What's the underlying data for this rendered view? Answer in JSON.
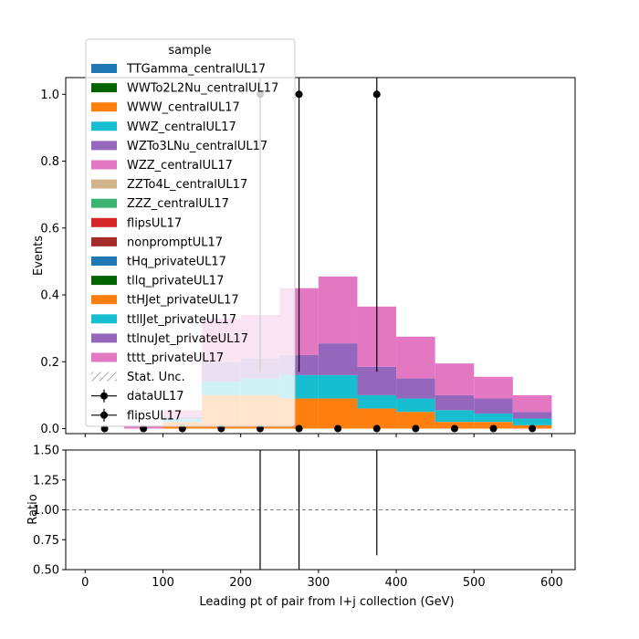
{
  "chart_data": {
    "type": "bar",
    "xlabel": "Leading pt of pair from l+j collection (GeV)",
    "x_ticks": [
      0,
      100,
      200,
      300,
      400,
      500,
      600
    ],
    "xlim": [
      -25,
      630
    ],
    "bin_edges": [
      0,
      50,
      100,
      150,
      200,
      250,
      300,
      350,
      400,
      450,
      500,
      550,
      600
    ],
    "main": {
      "ylabel": "Events",
      "ylim": [
        -0.015,
        1.05
      ],
      "y_ticks": [
        "0.0",
        "0.2",
        "0.4",
        "0.6",
        "0.8",
        "1.0"
      ],
      "y_tick_values": [
        0.0,
        0.2,
        0.4,
        0.6,
        0.8,
        1.0
      ]
    },
    "ratio": {
      "ylabel": "Ratio",
      "ylim": [
        0.5,
        1.5
      ],
      "y_ticks": [
        "0.50",
        "0.75",
        "1.00",
        "1.25",
        "1.50"
      ],
      "y_tick_values": [
        0.5,
        0.75,
        1.0,
        1.25,
        1.5
      ],
      "reference_line": 1.0,
      "error_bars": [
        {
          "x": 225,
          "low": 0.5,
          "high": 1.5
        },
        {
          "x": 275,
          "low": 0.5,
          "high": 1.5
        },
        {
          "x": 375,
          "low": 0.62,
          "high": 1.5
        }
      ]
    },
    "stack": [
      {
        "name": "ttHJet_privateUL17",
        "color": "#ff7f0e",
        "values": [
          0,
          0,
          0.02,
          0.1,
          0.1,
          0.09,
          0.09,
          0.06,
          0.05,
          0.02,
          0.02,
          0.01
        ]
      },
      {
        "name": "ttllJet_privateUL17",
        "color": "#17becf",
        "values": [
          0,
          0,
          0.01,
          0.04,
          0.05,
          0.07,
          0.07,
          0.04,
          0.04,
          0.035,
          0.025,
          0.02
        ]
      },
      {
        "name": "ttlnuJet_privateUL17",
        "color": "#9467bd",
        "values": [
          0,
          0,
          0.005,
          0.06,
          0.06,
          0.06,
          0.095,
          0.085,
          0.06,
          0.045,
          0.045,
          0.02
        ]
      },
      {
        "name": "tttt_privateUL17",
        "color": "#e377c2",
        "values": [
          0,
          0.01,
          0.02,
          0.13,
          0.13,
          0.2,
          0.2,
          0.18,
          0.125,
          0.095,
          0.065,
          0.05
        ]
      }
    ],
    "legend": {
      "title": "sample",
      "placement": "upper-left",
      "entries": [
        {
          "label": "TTGamma_centralUL17",
          "color": "#1f77b4",
          "kind": "patch"
        },
        {
          "label": "WWTo2L2Nu_centralUL17",
          "color": "#006400",
          "kind": "patch"
        },
        {
          "label": "WWW_centralUL17",
          "color": "#ff7f0e",
          "kind": "patch"
        },
        {
          "label": "WWZ_centralUL17",
          "color": "#17becf",
          "kind": "patch"
        },
        {
          "label": "WZTo3LNu_centralUL17",
          "color": "#9467bd",
          "kind": "patch"
        },
        {
          "label": "WZZ_centralUL17",
          "color": "#e377c2",
          "kind": "patch"
        },
        {
          "label": "ZZTo4L_centralUL17",
          "color": "#d2b48c",
          "kind": "patch"
        },
        {
          "label": "ZZZ_centralUL17",
          "color": "#3cb371",
          "kind": "patch"
        },
        {
          "label": "flipsUL17",
          "color": "#d62728",
          "kind": "patch"
        },
        {
          "label": "nonpromptUL17",
          "color": "#a52a2a",
          "kind": "patch"
        },
        {
          "label": "tHq_privateUL17",
          "color": "#1f77b4",
          "kind": "patch"
        },
        {
          "label": "tllq_privateUL17",
          "color": "#006400",
          "kind": "patch"
        },
        {
          "label": "ttHJet_privateUL17",
          "color": "#ff7f0e",
          "kind": "patch"
        },
        {
          "label": "ttllJet_privateUL17",
          "color": "#17becf",
          "kind": "patch"
        },
        {
          "label": "ttlnuJet_privateUL17",
          "color": "#9467bd",
          "kind": "patch"
        },
        {
          "label": "tttt_privateUL17",
          "color": "#e377c2",
          "kind": "patch"
        },
        {
          "label": "Stat. Unc.",
          "color": "#999999",
          "kind": "hatch"
        },
        {
          "label": "dataUL17",
          "color": "#000000",
          "kind": "errorbar"
        },
        {
          "label": "flipsUL17",
          "color": "#000000",
          "kind": "errorbar"
        }
      ]
    },
    "data_points": [
      {
        "x": 25,
        "y": 0,
        "err": 0
      },
      {
        "x": 75,
        "y": 0,
        "err": 0
      },
      {
        "x": 125,
        "y": 0,
        "err": 0
      },
      {
        "x": 175,
        "y": 0,
        "err": 0
      },
      {
        "x": 225,
        "y": 0,
        "err": 0
      },
      {
        "x": 225,
        "y": 1.0,
        "err_low": 0.83,
        "err_high": 0.05
      },
      {
        "x": 275,
        "y": 0,
        "err": 0
      },
      {
        "x": 275,
        "y": 1.0,
        "err_low": 0.83,
        "err_high": 0.05
      },
      {
        "x": 325,
        "y": 0,
        "err": 0
      },
      {
        "x": 375,
        "y": 0,
        "err": 0
      },
      {
        "x": 375,
        "y": 1.0,
        "err_low": 0.83,
        "err_high": 0.05
      },
      {
        "x": 425,
        "y": 0,
        "err": 0
      },
      {
        "x": 475,
        "y": 0,
        "err": 0
      },
      {
        "x": 525,
        "y": 0,
        "err": 0
      },
      {
        "x": 575,
        "y": 0,
        "err": 0
      }
    ]
  }
}
